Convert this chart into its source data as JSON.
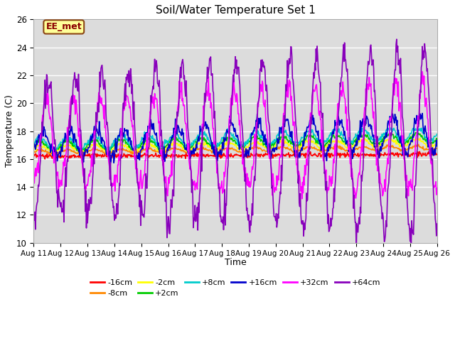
{
  "title": "Soil/Water Temperature Set 1",
  "xlabel": "Time",
  "ylabel": "Temperature (C)",
  "ylim": [
    10,
    26
  ],
  "xlim": [
    0,
    15
  ],
  "plot_bg_color": "#dcdcdc",
  "fig_bg_color": "#ffffff",
  "grid_color": "#ffffff",
  "annotation_text": "EE_met",
  "annotation_bg": "#ffff99",
  "annotation_border": "#8b4513",
  "x_labels": [
    "Aug 11",
    "Aug 12",
    "Aug 13",
    "Aug 14",
    "Aug 15",
    "Aug 16",
    "Aug 17",
    "Aug 18",
    "Aug 19",
    "Aug 20",
    "Aug 21",
    "Aug 22",
    "Aug 23",
    "Aug 24",
    "Aug 25",
    "Aug 26"
  ],
  "series": {
    "-16cm": {
      "color": "#ff0000"
    },
    "-8cm": {
      "color": "#ff8800"
    },
    "-2cm": {
      "color": "#ffff00"
    },
    "+2cm": {
      "color": "#00cc00"
    },
    "+8cm": {
      "color": "#00cccc"
    },
    "+16cm": {
      "color": "#0000cc"
    },
    "+32cm": {
      "color": "#ff00ff"
    },
    "+64cm": {
      "color": "#8800bb"
    }
  },
  "legend_order": [
    "-16cm",
    "-8cm",
    "-2cm",
    "+2cm",
    "+8cm",
    "+16cm",
    "+32cm",
    "+64cm"
  ]
}
